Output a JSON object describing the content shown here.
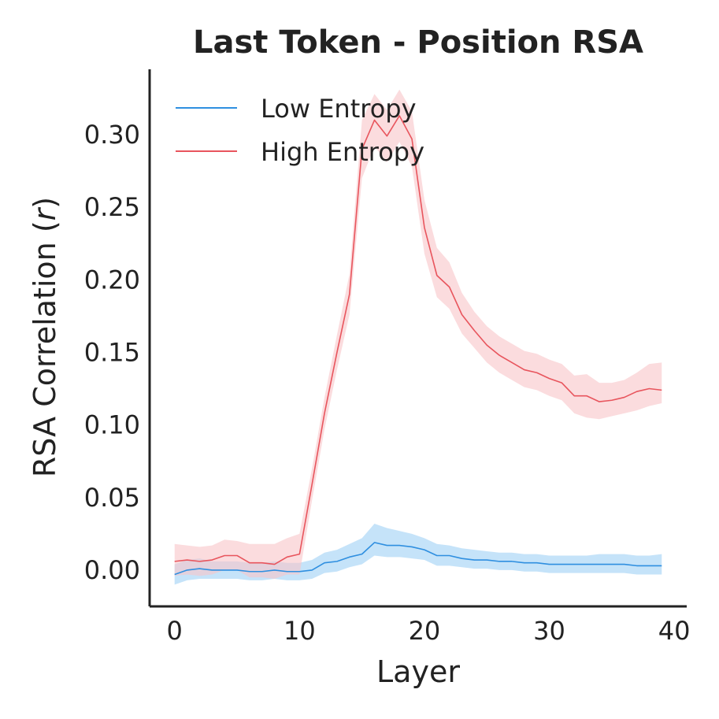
{
  "chart_data": {
    "type": "line",
    "title": "Last Token - Position RSA",
    "xlabel": "Layer",
    "ylabel": "RSA Correlation (r)",
    "ylabel_parts": [
      "RSA Correlation (",
      "r",
      ")"
    ],
    "xlim": [
      -2,
      41
    ],
    "ylim": [
      -0.025,
      0.345
    ],
    "xticks": [
      0,
      10,
      20,
      30,
      40
    ],
    "xtick_labels": [
      "0",
      "10",
      "20",
      "30",
      "40"
    ],
    "yticks": [
      0.0,
      0.05,
      0.1,
      0.15,
      0.2,
      0.25,
      0.3
    ],
    "ytick_labels": [
      "0.00",
      "0.05",
      "0.10",
      "0.15",
      "0.20",
      "0.25",
      "0.30"
    ],
    "grid": false,
    "legend_position": "top-left",
    "x": [
      0,
      1,
      2,
      3,
      4,
      5,
      6,
      7,
      8,
      9,
      10,
      11,
      12,
      13,
      14,
      15,
      16,
      17,
      18,
      19,
      20,
      21,
      22,
      23,
      24,
      25,
      26,
      27,
      28,
      29,
      30,
      31,
      32,
      33,
      34,
      35,
      36,
      37,
      38,
      39
    ],
    "series": [
      {
        "name": "Low Entropy",
        "color": "#2f8fe0",
        "band_color": "#9fd0f5",
        "values": [
          -0.003,
          0.0,
          0.001,
          0.0,
          0.0,
          0.0,
          -0.001,
          -0.001,
          0.0,
          -0.001,
          -0.001,
          0.0,
          0.005,
          0.006,
          0.009,
          0.011,
          0.019,
          0.017,
          0.017,
          0.016,
          0.014,
          0.01,
          0.01,
          0.008,
          0.007,
          0.007,
          0.006,
          0.006,
          0.005,
          0.005,
          0.004,
          0.004,
          0.004,
          0.004,
          0.004,
          0.004,
          0.004,
          0.003,
          0.003,
          0.003
        ],
        "lower": [
          -0.01,
          -0.007,
          -0.006,
          -0.006,
          -0.006,
          -0.006,
          -0.007,
          -0.007,
          -0.006,
          -0.007,
          -0.007,
          -0.006,
          -0.002,
          -0.001,
          0.002,
          0.004,
          0.01,
          0.009,
          0.009,
          0.008,
          0.007,
          0.003,
          0.003,
          0.002,
          0.001,
          0.001,
          0.0,
          0.0,
          -0.001,
          -0.001,
          -0.002,
          -0.002,
          -0.002,
          -0.002,
          -0.002,
          -0.002,
          -0.002,
          -0.003,
          -0.003,
          -0.003
        ],
        "upper": [
          0.004,
          0.007,
          0.008,
          0.006,
          0.006,
          0.006,
          0.005,
          0.005,
          0.006,
          0.005,
          0.005,
          0.007,
          0.012,
          0.014,
          0.018,
          0.022,
          0.032,
          0.029,
          0.027,
          0.025,
          0.022,
          0.018,
          0.017,
          0.015,
          0.014,
          0.013,
          0.012,
          0.012,
          0.011,
          0.011,
          0.01,
          0.01,
          0.01,
          0.01,
          0.011,
          0.011,
          0.011,
          0.01,
          0.01,
          0.011
        ]
      },
      {
        "name": "High Entropy",
        "color": "#e8555d",
        "band_color": "#f9c4c8",
        "values": [
          0.006,
          0.007,
          0.006,
          0.007,
          0.01,
          0.01,
          0.005,
          0.005,
          0.004,
          0.009,
          0.011,
          0.059,
          0.108,
          0.15,
          0.19,
          0.29,
          0.31,
          0.299,
          0.313,
          0.297,
          0.236,
          0.203,
          0.195,
          0.176,
          0.165,
          0.155,
          0.148,
          0.143,
          0.138,
          0.136,
          0.132,
          0.129,
          0.12,
          0.12,
          0.116,
          0.117,
          0.119,
          0.123,
          0.125,
          0.124
        ],
        "lower": [
          -0.004,
          -0.003,
          -0.004,
          -0.003,
          0.0,
          0.0,
          -0.005,
          -0.005,
          -0.006,
          -0.003,
          -0.003,
          0.048,
          0.097,
          0.138,
          0.176,
          0.27,
          0.292,
          0.281,
          0.295,
          0.278,
          0.218,
          0.188,
          0.18,
          0.163,
          0.153,
          0.143,
          0.136,
          0.131,
          0.126,
          0.124,
          0.12,
          0.117,
          0.108,
          0.105,
          0.104,
          0.106,
          0.108,
          0.11,
          0.113,
          0.115
        ],
        "upper": [
          0.018,
          0.017,
          0.016,
          0.017,
          0.021,
          0.02,
          0.018,
          0.018,
          0.018,
          0.022,
          0.025,
          0.07,
          0.119,
          0.162,
          0.204,
          0.31,
          0.328,
          0.317,
          0.331,
          0.316,
          0.255,
          0.222,
          0.212,
          0.191,
          0.178,
          0.168,
          0.161,
          0.156,
          0.151,
          0.149,
          0.145,
          0.142,
          0.134,
          0.135,
          0.129,
          0.129,
          0.131,
          0.136,
          0.142,
          0.143
        ]
      }
    ]
  }
}
